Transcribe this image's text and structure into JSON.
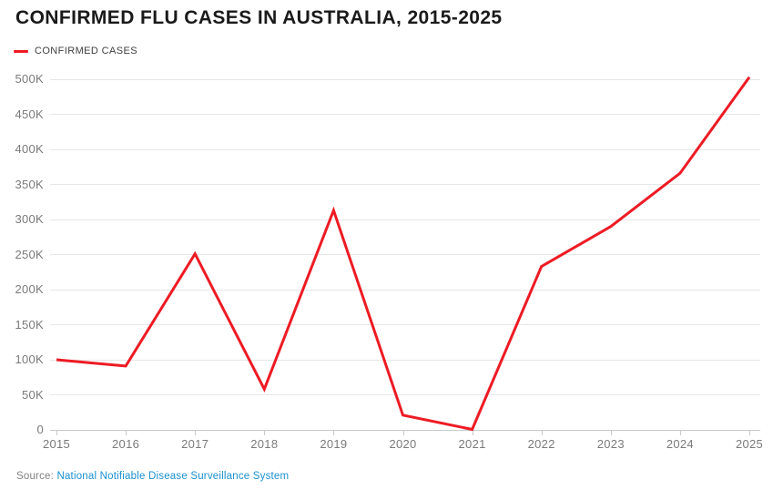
{
  "chart": {
    "title": "CONFIRMED FLU CASES IN AUSTRALIA, 2015-2025",
    "legend_label": "CONFIRMED CASES",
    "source_prefix": "Source:",
    "source_link": "National Notifiable Disease Surveillance System"
  },
  "chart_data": {
    "type": "line",
    "title": "CONFIRMED FLU CASES IN AUSTRALIA, 2015-2025",
    "xlabel": "",
    "ylabel": "",
    "x": [
      "2015",
      "2016",
      "2017",
      "2018",
      "2019",
      "2020",
      "2021",
      "2022",
      "2023",
      "2024",
      "2025"
    ],
    "series": [
      {
        "name": "CONFIRMED CASES",
        "values": [
          100000,
          91000,
          251000,
          58000,
          313000,
          21000,
          600,
          233000,
          290000,
          366000,
          503000
        ]
      }
    ],
    "ylim": [
      0,
      500000
    ],
    "y_tick_step": 50000,
    "y_tick_labels": [
      "0",
      "50K",
      "100K",
      "150K",
      "200K",
      "250K",
      "300K",
      "350K",
      "400K",
      "450K",
      "500K"
    ],
    "grid": "horizontal-only",
    "legend_position": "top-left"
  },
  "colors": {
    "series_red": "#ed1b24",
    "title_text": "#1a1a1a",
    "legend_text": "#404040",
    "axis_label": "#7a7a7a",
    "gridline": "#e7e7e7",
    "baseline_and_ticks": "#c9c9c9",
    "source_text": "#828282",
    "source_link_blue": "#1a90cf",
    "background": "#ffffff"
  }
}
